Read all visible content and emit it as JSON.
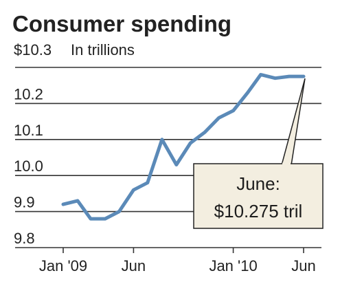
{
  "chart_data": {
    "type": "line",
    "title": "Consumer spending",
    "ylabel": "$10.3",
    "units_note": "In trillions",
    "ylim": [
      9.8,
      10.3
    ],
    "y_ticks": [
      9.8,
      9.9,
      10.0,
      10.1,
      10.2,
      10.3
    ],
    "y_tick_labels": [
      "9.8",
      "9.9",
      "10.0",
      "10.1",
      "10.2",
      "$10.3"
    ],
    "x_tick_labels": [
      {
        "label": "Jan '09",
        "date": "2009-01-01"
      },
      {
        "label": "Jun",
        "date": "2009-06-01"
      },
      {
        "label": "Jan '10",
        "date": "2010-01-01"
      },
      {
        "label": "Jun",
        "date": "2010-06-01"
      }
    ],
    "x": [
      "2009-01-01",
      "2009-02-01",
      "2009-03-01",
      "2009-04-01",
      "2009-05-01",
      "2009-06-01",
      "2009-07-01",
      "2009-08-01",
      "2009-09-01",
      "2009-10-01",
      "2009-11-01",
      "2009-12-01",
      "2010-01-01",
      "2010-02-01",
      "2010-03-01",
      "2010-04-01",
      "2010-05-01",
      "2010-06-01"
    ],
    "series": [
      {
        "values": [
          9.92,
          9.93,
          9.88,
          9.88,
          9.9,
          9.96,
          9.98,
          10.1,
          10.03,
          10.09,
          10.12,
          10.16,
          10.18,
          10.23,
          10.28,
          10.27,
          10.275,
          10.275
        ]
      }
    ],
    "annotation": {
      "line1": "June:",
      "line2": "$10.275 tril",
      "points_to": "2010-06-01"
    },
    "grid": true,
    "line_color": "#5b8ab8"
  }
}
